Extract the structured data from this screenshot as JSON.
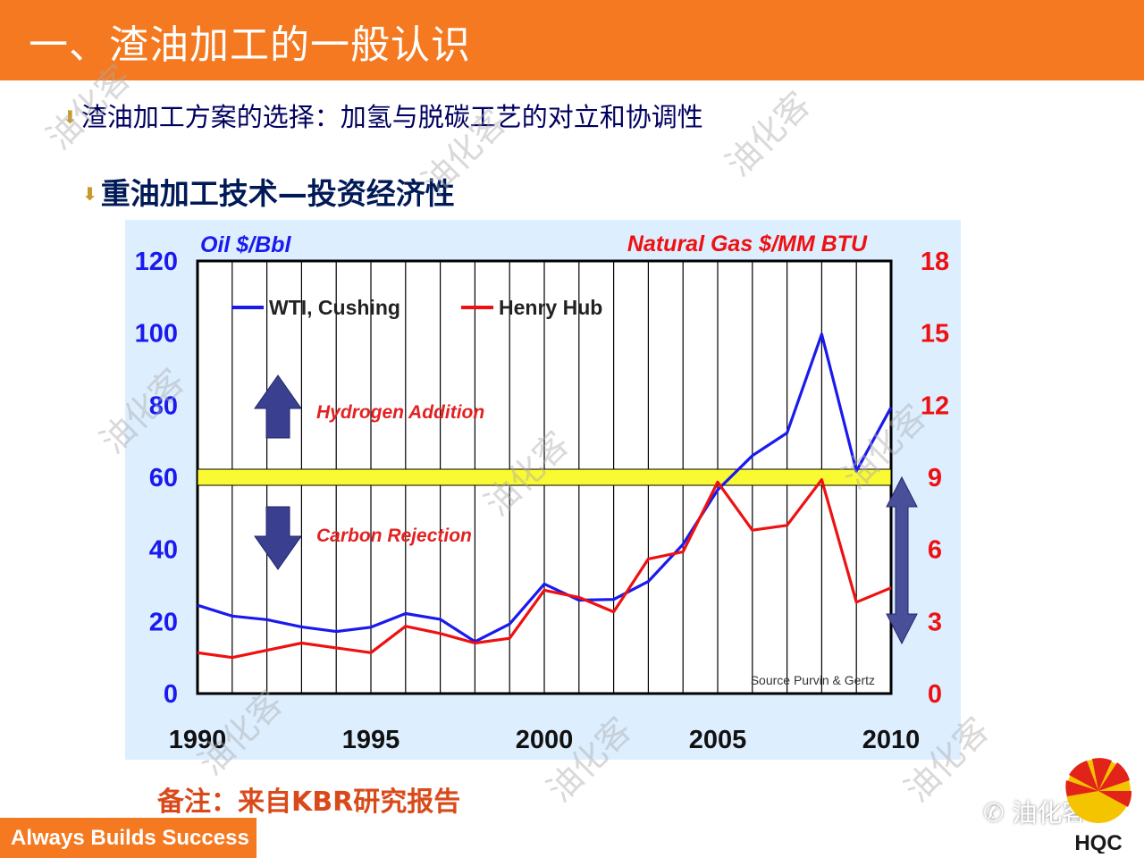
{
  "header": {
    "title": "一、渣油加工的一般认识",
    "bg_color": "#f47920"
  },
  "bullets": {
    "line1": "渣油加工方案的选择：加氢与脱碳工艺的对立和协调性",
    "line2": "重油加工技术—投资经济性"
  },
  "chart_data": {
    "type": "line",
    "title_left": "Oil $/Bbl",
    "title_right": "Natural Gas $/MM BTU",
    "x": [
      1990,
      1991,
      1992,
      1993,
      1994,
      1995,
      1996,
      1997,
      1998,
      1999,
      2000,
      2001,
      2002,
      2003,
      2004,
      2005,
      2006,
      2007,
      2008,
      2009,
      2010
    ],
    "xlim": [
      1990,
      2010
    ],
    "x_ticks": [
      "1990",
      "1995",
      "2000",
      "2005",
      "2010"
    ],
    "ylim_left": [
      0,
      120
    ],
    "y_ticks_left": [
      "0",
      "20",
      "40",
      "60",
      "80",
      "100",
      "120"
    ],
    "ylim_right": [
      0,
      18
    ],
    "y_ticks_right": [
      "0",
      "3",
      "6",
      "9",
      "12",
      "15",
      "18"
    ],
    "series": [
      {
        "name": "WTI, Cushing",
        "axis": "left",
        "color": "#1a1aee",
        "values": [
          24.5,
          21.5,
          20.5,
          18.5,
          17.2,
          18.4,
          22.2,
          20.6,
          14.4,
          19.3,
          30.4,
          25.9,
          26.1,
          31.1,
          41.4,
          56.5,
          66.0,
          72.3,
          99.7,
          61.7,
          79.4
        ]
      },
      {
        "name": "Henry Hub",
        "axis": "right",
        "color": "#ee1111",
        "values": [
          1.7,
          1.5,
          1.8,
          2.1,
          1.9,
          1.7,
          2.8,
          2.5,
          2.1,
          2.3,
          4.3,
          4.0,
          3.4,
          5.6,
          5.9,
          8.8,
          6.8,
          7.0,
          8.9,
          3.8,
          4.4
        ]
      }
    ],
    "threshold_line": {
      "left_value": 60
    },
    "annotations": {
      "upper": "Hydrogen Addition",
      "lower": "Carbon Rejection",
      "source": "Source Purvin & Gertz"
    },
    "grid": "vertical",
    "legend": "top-left"
  },
  "note": "备注：来自KBR研究报告",
  "footer": {
    "tagline": "Always Builds Success"
  },
  "wechat_label": "油化客",
  "logo": {
    "text": "HQC"
  },
  "watermark": "油化客"
}
